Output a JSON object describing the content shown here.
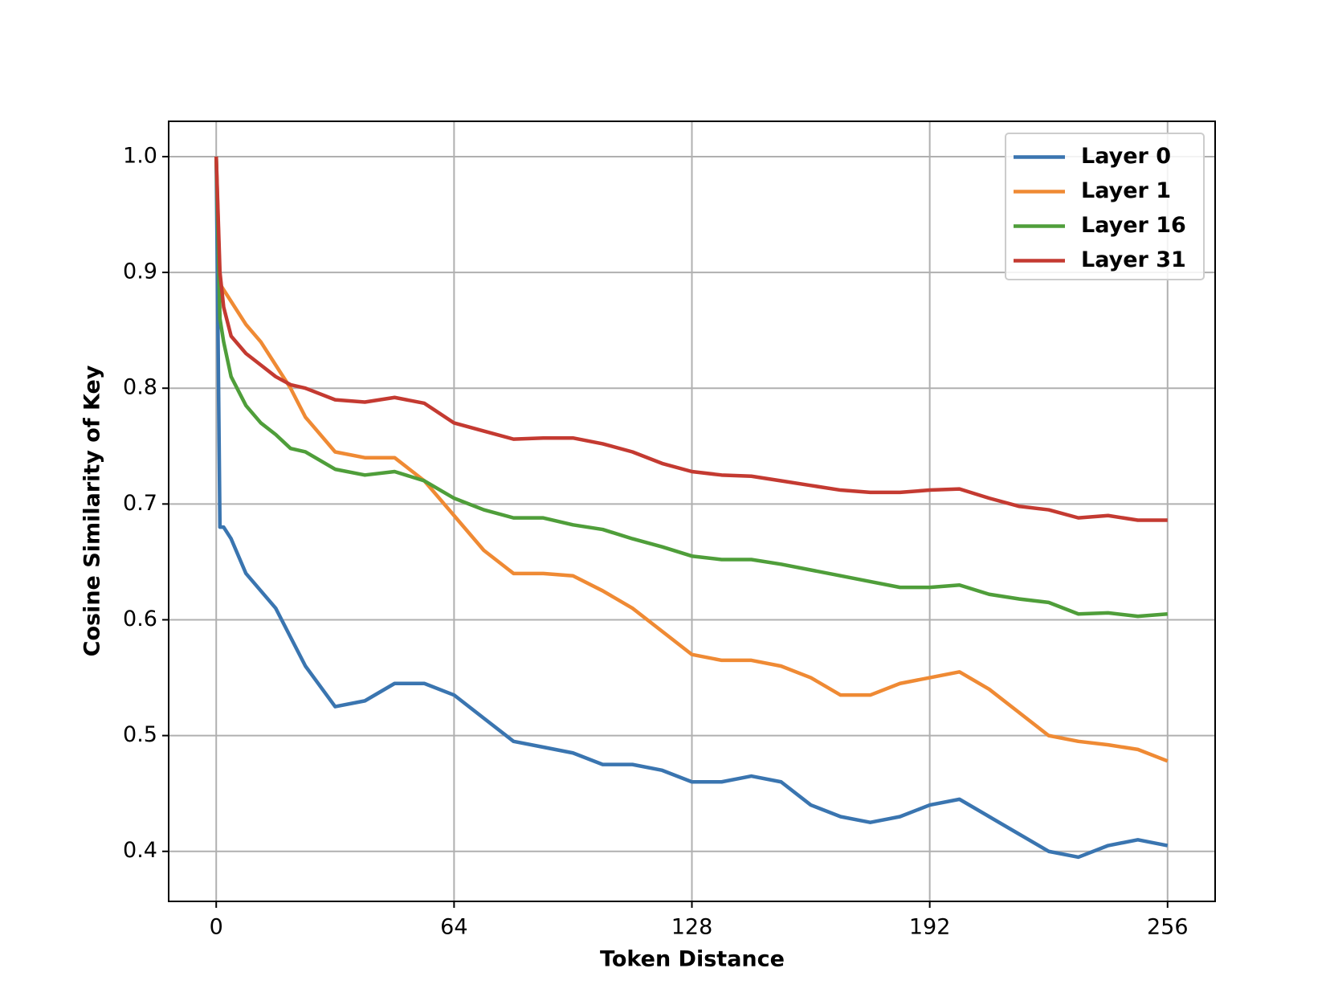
{
  "chart_data": {
    "type": "line",
    "xlabel": "Token Distance",
    "ylabel": "Cosine Similarity of Key",
    "x": [
      0,
      1,
      2,
      4,
      8,
      12,
      16,
      20,
      24,
      32,
      40,
      48,
      56,
      64,
      72,
      80,
      88,
      96,
      104,
      112,
      120,
      128,
      136,
      144,
      152,
      160,
      168,
      176,
      184,
      192,
      200,
      208,
      216,
      224,
      232,
      240,
      248,
      256
    ],
    "series": [
      {
        "name": "Layer 0",
        "color": "#3a75b0",
        "values": [
          1.0,
          0.68,
          0.68,
          0.67,
          0.64,
          0.625,
          0.61,
          0.585,
          0.56,
          0.525,
          0.53,
          0.545,
          0.545,
          0.535,
          0.515,
          0.495,
          0.49,
          0.485,
          0.475,
          0.475,
          0.47,
          0.46,
          0.46,
          0.465,
          0.46,
          0.44,
          0.43,
          0.425,
          0.43,
          0.44,
          0.445,
          0.43,
          0.415,
          0.4,
          0.395,
          0.405,
          0.41,
          0.405
        ]
      },
      {
        "name": "Layer 1",
        "color": "#ef8a34",
        "values": [
          1.0,
          0.89,
          0.885,
          0.875,
          0.855,
          0.84,
          0.82,
          0.8,
          0.775,
          0.745,
          0.74,
          0.74,
          0.72,
          0.69,
          0.66,
          0.64,
          0.64,
          0.638,
          0.625,
          0.61,
          0.59,
          0.57,
          0.565,
          0.565,
          0.56,
          0.55,
          0.535,
          0.535,
          0.545,
          0.55,
          0.555,
          0.54,
          0.52,
          0.5,
          0.495,
          0.492,
          0.488,
          0.478
        ]
      },
      {
        "name": "Layer 16",
        "color": "#4f9e3a",
        "values": [
          1.0,
          0.86,
          0.84,
          0.81,
          0.785,
          0.77,
          0.76,
          0.748,
          0.745,
          0.73,
          0.725,
          0.728,
          0.72,
          0.705,
          0.695,
          0.688,
          0.688,
          0.682,
          0.678,
          0.67,
          0.663,
          0.655,
          0.652,
          0.652,
          0.648,
          0.643,
          0.638,
          0.633,
          0.628,
          0.628,
          0.63,
          0.622,
          0.618,
          0.615,
          0.605,
          0.606,
          0.603,
          0.605
        ]
      },
      {
        "name": "Layer 31",
        "color": "#c43a31",
        "values": [
          1.0,
          0.9,
          0.87,
          0.845,
          0.83,
          0.82,
          0.81,
          0.803,
          0.8,
          0.79,
          0.788,
          0.792,
          0.787,
          0.77,
          0.763,
          0.756,
          0.757,
          0.757,
          0.752,
          0.745,
          0.735,
          0.728,
          0.725,
          0.724,
          0.72,
          0.716,
          0.712,
          0.71,
          0.71,
          0.712,
          0.713,
          0.705,
          0.698,
          0.695,
          0.688,
          0.69,
          0.686,
          0.686
        ]
      }
    ],
    "xlim": [
      -12.8,
      268.8
    ],
    "ylim": [
      0.3568,
      1.0305
    ],
    "xticks": [
      0,
      64,
      128,
      192,
      256
    ],
    "yticks": [
      0.4,
      0.5,
      0.6,
      0.7,
      0.8,
      0.9,
      {
        "value": 1.0,
        "label": "1.0"
      }
    ],
    "grid": true,
    "legend": "upper right"
  }
}
